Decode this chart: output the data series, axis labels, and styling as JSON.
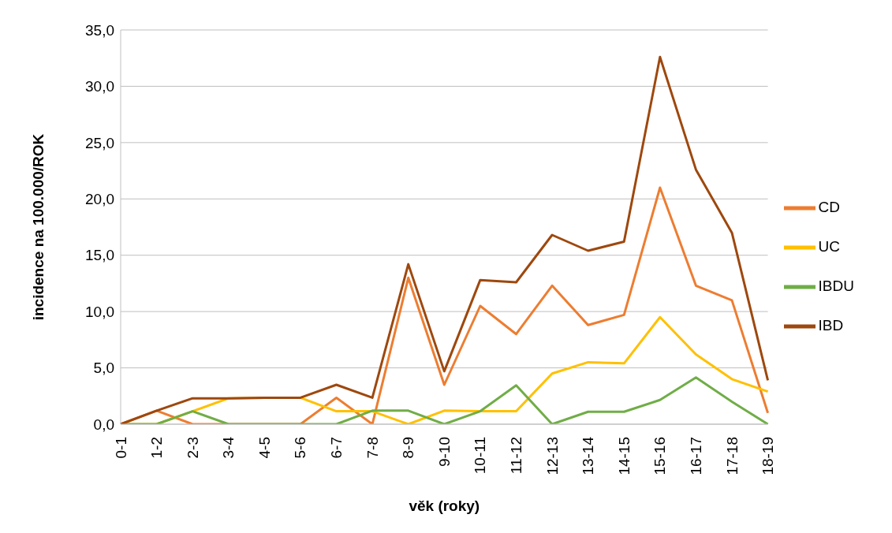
{
  "chart_data": {
    "type": "line",
    "xlabel": "věk (roky)",
    "ylabel": "incidence na 100.000/ROK",
    "categories": [
      "0-1",
      "1-2",
      "2-3",
      "3-4",
      "4-5",
      "5-6",
      "6-7",
      "7-8",
      "8-9",
      "9-10",
      "10-11",
      "11-12",
      "12-13",
      "13-14",
      "14-15",
      "15-16",
      "16-17",
      "17-18",
      "18-19"
    ],
    "series": [
      {
        "name": "CD",
        "color": "#ed7d31",
        "values": [
          0,
          1.2,
          0,
          0,
          0,
          0,
          2.35,
          0,
          13.0,
          3.5,
          10.5,
          8.0,
          12.3,
          8.8,
          9.7,
          21.0,
          12.3,
          11.0,
          1.0
        ]
      },
      {
        "name": "UC",
        "color": "#ffc000",
        "values": [
          0,
          0,
          1.15,
          2.3,
          2.35,
          2.35,
          1.15,
          1.15,
          0,
          1.2,
          1.15,
          1.15,
          4.5,
          5.5,
          5.4,
          9.5,
          6.2,
          4.0,
          2.9
        ]
      },
      {
        "name": "IBDU",
        "color": "#70ad47",
        "values": [
          0,
          0,
          1.15,
          0,
          0,
          0,
          0,
          1.2,
          1.2,
          0,
          1.15,
          3.45,
          0,
          1.1,
          1.1,
          2.15,
          4.15,
          2.0,
          0
        ]
      },
      {
        "name": "IBD",
        "color": "#9e480e",
        "values": [
          0,
          1.2,
          2.3,
          2.3,
          2.35,
          2.35,
          3.5,
          2.35,
          14.2,
          4.7,
          12.8,
          12.6,
          16.8,
          15.4,
          16.2,
          32.6,
          22.6,
          17.0,
          3.9
        ]
      }
    ],
    "ylim": [
      0,
      35
    ],
    "yticks": [
      {
        "value": 0,
        "label": "0,0"
      },
      {
        "value": 5,
        "label": "5,0"
      },
      {
        "value": 10,
        "label": "10,0"
      },
      {
        "value": 15,
        "label": "15,0"
      },
      {
        "value": 20,
        "label": "20,0"
      },
      {
        "value": 25,
        "label": "25,0"
      },
      {
        "value": 30,
        "label": "30,0"
      },
      {
        "value": 35,
        "label": "35,0"
      }
    ],
    "grid": "y",
    "legend": "right",
    "marker": "none",
    "line_style": "solid"
  }
}
